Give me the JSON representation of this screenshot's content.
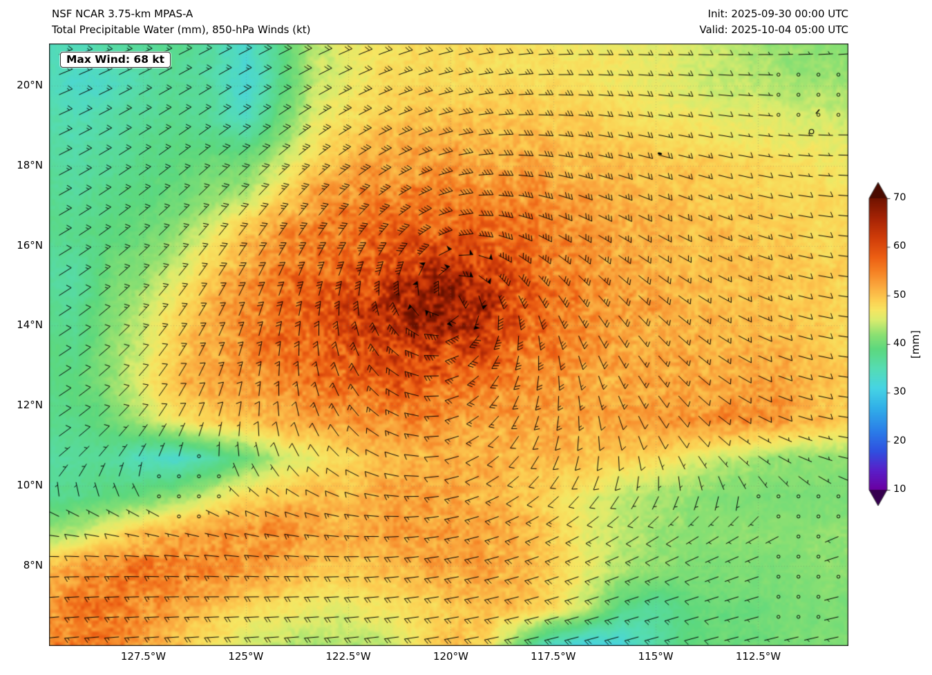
{
  "header": {
    "model_line": "NSF NCAR 3.75-km MPAS-A",
    "field_line": "Total Precipitable Water (mm), 850-hPa Winds (kt)",
    "init_line": "Init: 2025-09-30 00:00 UTC",
    "valid_line": "Valid: 2025-10-04 05:00 UTC"
  },
  "map": {
    "max_wind_label": "Max Wind: 68 kt",
    "axes": {
      "lon_min": -129.8,
      "lon_max": -110.3,
      "lat_min": 6.0,
      "lat_max": 21.05,
      "x_ticks": [
        {
          "value": -127.5,
          "label": "127.5°W"
        },
        {
          "value": -125.0,
          "label": "125°W"
        },
        {
          "value": -122.5,
          "label": "122.5°W"
        },
        {
          "value": -120.0,
          "label": "120°W"
        },
        {
          "value": -117.5,
          "label": "117.5°W"
        },
        {
          "value": -115.0,
          "label": "115°W"
        },
        {
          "value": -112.5,
          "label": "112.5°W"
        }
      ],
      "y_ticks": [
        {
          "value": 20,
          "label": "20°N"
        },
        {
          "value": 18,
          "label": "18°N"
        },
        {
          "value": 16,
          "label": "16°N"
        },
        {
          "value": 14,
          "label": "14°N"
        },
        {
          "value": 12,
          "label": "12°N"
        },
        {
          "value": 10,
          "label": "10°N"
        },
        {
          "value": 8,
          "label": "8°N"
        }
      ],
      "grid_lines": true
    },
    "islands": [
      {
        "lon": -114.9,
        "lat": 18.3,
        "style": "dot"
      },
      {
        "lon": -111.2,
        "lat": 18.85,
        "style": "ring"
      },
      {
        "lon": -111.05,
        "lat": 19.35,
        "style": "dash"
      }
    ]
  },
  "chart_data": {
    "type": "heatmap",
    "title": "Total Precipitable Water (mm), 850-hPa Winds (kt)",
    "units": "mm",
    "grid": {
      "lons": [
        -130,
        -129.17,
        -128.33,
        -127.5,
        -126.67,
        -125.83,
        -125,
        -124.17,
        -123.33,
        -122.5,
        -121.67,
        -120.83,
        -120,
        -119.17,
        -118.33,
        -117.5,
        -116.67,
        -115.83,
        -115,
        -114.17,
        -113.33,
        -112.5,
        -111.67,
        -110.83,
        -110
      ],
      "lats": [
        21,
        20.06,
        19.12,
        18.19,
        17.25,
        16.31,
        15.37,
        14.44,
        13.5,
        12.56,
        11.62,
        10.69,
        9.75,
        8.81,
        7.87,
        6.94,
        6
      ],
      "tpw_mm": [
        [
          35,
          34,
          36,
          37,
          38,
          36,
          33,
          38,
          44,
          46,
          47,
          48,
          48,
          48,
          47,
          47,
          47,
          46,
          46,
          45,
          44,
          43,
          42,
          42,
          41
        ],
        [
          35,
          33,
          34,
          36,
          37,
          36,
          32,
          38,
          44,
          46,
          48,
          48,
          48,
          48,
          48,
          48,
          47,
          47,
          46,
          45,
          44,
          44,
          43,
          43,
          42
        ],
        [
          36,
          35,
          36,
          37,
          38,
          37,
          34,
          40,
          46,
          48,
          49,
          50,
          50,
          50,
          50,
          49,
          49,
          48,
          47,
          47,
          46,
          46,
          45,
          45,
          44
        ],
        [
          37,
          36,
          37,
          38,
          39,
          40,
          40,
          44,
          48,
          50,
          52,
          52,
          52,
          52,
          52,
          51,
          50,
          50,
          49,
          49,
          48,
          48,
          47,
          47,
          46
        ],
        [
          38,
          37,
          38,
          39,
          40,
          42,
          44,
          48,
          52,
          54,
          55,
          55,
          55,
          54,
          54,
          53,
          52,
          51,
          50,
          50,
          49,
          49,
          48,
          48,
          47
        ],
        [
          38,
          38,
          39,
          40,
          42,
          46,
          50,
          53,
          55,
          56,
          57,
          58,
          58,
          57,
          56,
          54,
          53,
          52,
          51,
          50,
          50,
          49,
          49,
          48,
          48
        ],
        [
          37,
          36,
          40,
          42,
          45,
          49,
          52,
          55,
          57,
          58,
          60,
          62,
          63,
          62,
          58,
          55,
          54,
          52,
          51,
          50,
          50,
          50,
          49,
          49,
          48
        ],
        [
          38,
          37,
          41,
          44,
          48,
          51,
          54,
          56,
          58,
          60,
          64,
          67,
          68,
          65,
          60,
          56,
          54,
          53,
          52,
          51,
          50,
          50,
          50,
          49,
          48
        ],
        [
          39,
          38,
          42,
          45,
          49,
          52,
          54,
          56,
          58,
          60,
          62,
          63,
          62,
          60,
          57,
          55,
          53,
          52,
          52,
          51,
          51,
          51,
          50,
          49,
          48
        ],
        [
          38,
          39,
          42,
          46,
          50,
          52,
          53,
          54,
          56,
          57,
          58,
          58,
          57,
          55,
          54,
          53,
          52,
          52,
          52,
          52,
          52,
          53,
          52,
          50,
          49
        ],
        [
          38,
          38,
          40,
          44,
          47,
          49,
          50,
          51,
          52,
          53,
          54,
          54,
          53,
          52,
          52,
          52,
          52,
          52,
          52,
          53,
          54,
          54,
          52,
          50,
          48
        ],
        [
          36,
          37,
          37,
          34,
          33,
          36,
          40,
          44,
          46,
          48,
          50,
          51,
          51,
          51,
          51,
          51,
          50,
          49,
          48,
          46,
          44,
          43,
          42,
          42,
          42
        ],
        [
          37,
          38,
          39,
          40,
          42,
          45,
          48,
          50,
          51,
          50,
          52,
          53,
          52,
          51,
          50,
          48,
          46,
          44,
          43,
          42,
          41,
          41,
          41,
          41,
          41
        ],
        [
          42,
          44,
          47,
          50,
          52,
          53,
          54,
          54,
          52,
          51,
          52,
          53,
          53,
          52,
          51,
          49,
          46,
          44,
          43,
          42,
          42,
          42,
          42,
          42,
          42
        ],
        [
          50,
          53,
          55,
          56,
          55,
          54,
          53,
          52,
          50,
          49,
          50,
          51,
          52,
          52,
          51,
          49,
          46,
          43,
          42,
          41,
          41,
          41,
          41,
          42,
          42
        ],
        [
          52,
          55,
          56,
          54,
          52,
          50,
          48,
          47,
          46,
          46,
          47,
          48,
          49,
          50,
          50,
          48,
          44,
          38,
          37,
          39,
          40,
          40,
          41,
          41,
          41
        ],
        [
          54,
          56,
          55,
          52,
          50,
          47,
          45,
          44,
          43,
          43,
          44,
          47,
          50,
          48,
          40,
          33,
          31,
          32,
          36,
          39,
          40,
          40,
          41,
          41,
          41
        ]
      ]
    },
    "wind": {
      "type": "cyclonic-vortex-plus-trades",
      "center_lon": -120.0,
      "center_lat": 14.7,
      "max_wind_kt": 68,
      "barb_units": "kt",
      "calm_zones": [
        {
          "lon": -111.3,
          "lat": 19.8,
          "sigma": 2.6
        },
        {
          "lon": -111.5,
          "lat": 7.3,
          "sigma": 2.8
        },
        {
          "lon": -126.3,
          "lat": 9.9,
          "sigma": 1.5
        }
      ]
    },
    "colorbar": {
      "label": "[mm]",
      "ticks": [
        10,
        20,
        30,
        40,
        50,
        60,
        70
      ],
      "vmin": 10,
      "vmax": 70,
      "stops": [
        [
          8,
          "#35004f"
        ],
        [
          10,
          "#6a00a0"
        ],
        [
          14,
          "#5a1ec8"
        ],
        [
          18,
          "#2f50e0"
        ],
        [
          22,
          "#2a7ce8"
        ],
        [
          27,
          "#31b0e8"
        ],
        [
          31,
          "#46d4e4"
        ],
        [
          35,
          "#55dcb4"
        ],
        [
          39,
          "#5cd87e"
        ],
        [
          42,
          "#8ce072"
        ],
        [
          45,
          "#d8ec6e"
        ],
        [
          47,
          "#f6e662"
        ],
        [
          49,
          "#fccf52"
        ],
        [
          52,
          "#faa83e"
        ],
        [
          55,
          "#f58124"
        ],
        [
          58,
          "#ec5e13"
        ],
        [
          62,
          "#cf3c09"
        ],
        [
          66,
          "#a52305"
        ],
        [
          70,
          "#711300"
        ],
        [
          75,
          "#4a0b00"
        ]
      ]
    },
    "legend_position": "right",
    "xlabel": "",
    "ylabel": ""
  }
}
